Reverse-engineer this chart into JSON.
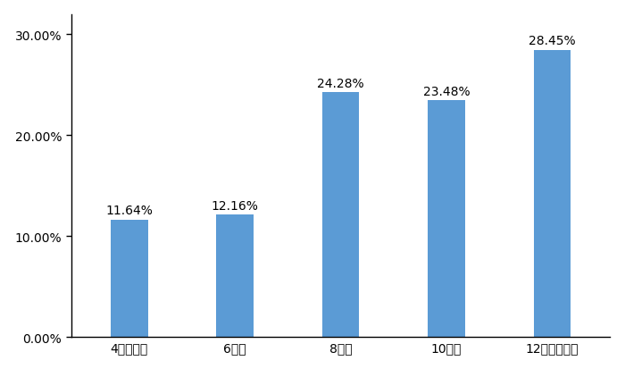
{
  "categories": [
    "4小时以内",
    "6小时",
    "8小时",
    "10小时",
    "12小时及以上"
  ],
  "values": [
    11.64,
    12.16,
    24.28,
    23.48,
    28.45
  ],
  "labels": [
    "11.64%",
    "12.16%",
    "24.28%",
    "23.48%",
    "28.45%"
  ],
  "bar_color": "#5b9bd5",
  "ylim": [
    0,
    32
  ],
  "yticks": [
    0,
    10,
    20,
    30
  ],
  "ytick_labels": [
    "0.00%",
    "10.00%",
    "20.00%",
    "30.00%"
  ],
  "background_color": "#ffffff",
  "label_fontsize": 10,
  "tick_fontsize": 10,
  "bar_width": 0.35
}
